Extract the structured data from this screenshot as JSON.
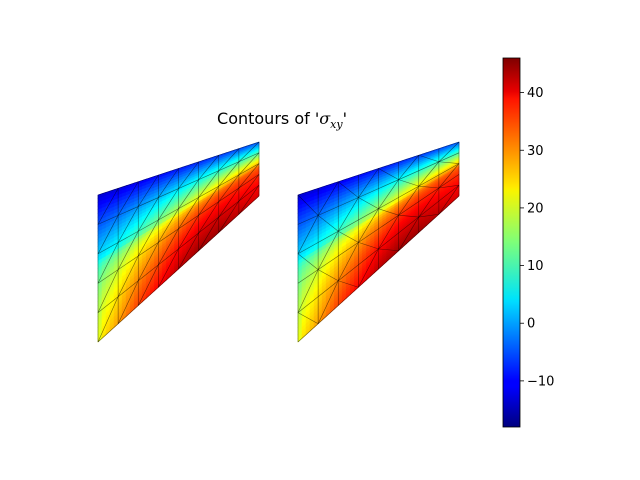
{
  "chart_data": {
    "type": "heatmap",
    "title": {
      "prefix": "Contours of '",
      "symbol": "σ",
      "subscript": "xy",
      "suffix": "'"
    },
    "colormap": "jet",
    "colorbar": {
      "min": -18,
      "max": 46,
      "ticks": [
        -10,
        0,
        10,
        20,
        30,
        40
      ],
      "tick_labels": [
        "−10",
        "0",
        "10",
        "20",
        "30",
        "40"
      ],
      "placement": "right"
    },
    "panels": [
      {
        "name": "left",
        "mesh": "quad-diagonal",
        "nx": 8,
        "ny": 5
      },
      {
        "name": "right",
        "mesh": "triangulated",
        "nx": 8,
        "ny": 5
      }
    ],
    "field_values": {
      "top_edge": [
        -13,
        -12,
        -11,
        -10,
        -9,
        -8,
        -7,
        -6,
        -5
      ],
      "mid_band": [
        5,
        8,
        12,
        16,
        20,
        24,
        27,
        29,
        30
      ],
      "hypotenuse": [
        22,
        28,
        34,
        38,
        42,
        44,
        44,
        42,
        40
      ],
      "bottom_left": 21
    }
  }
}
